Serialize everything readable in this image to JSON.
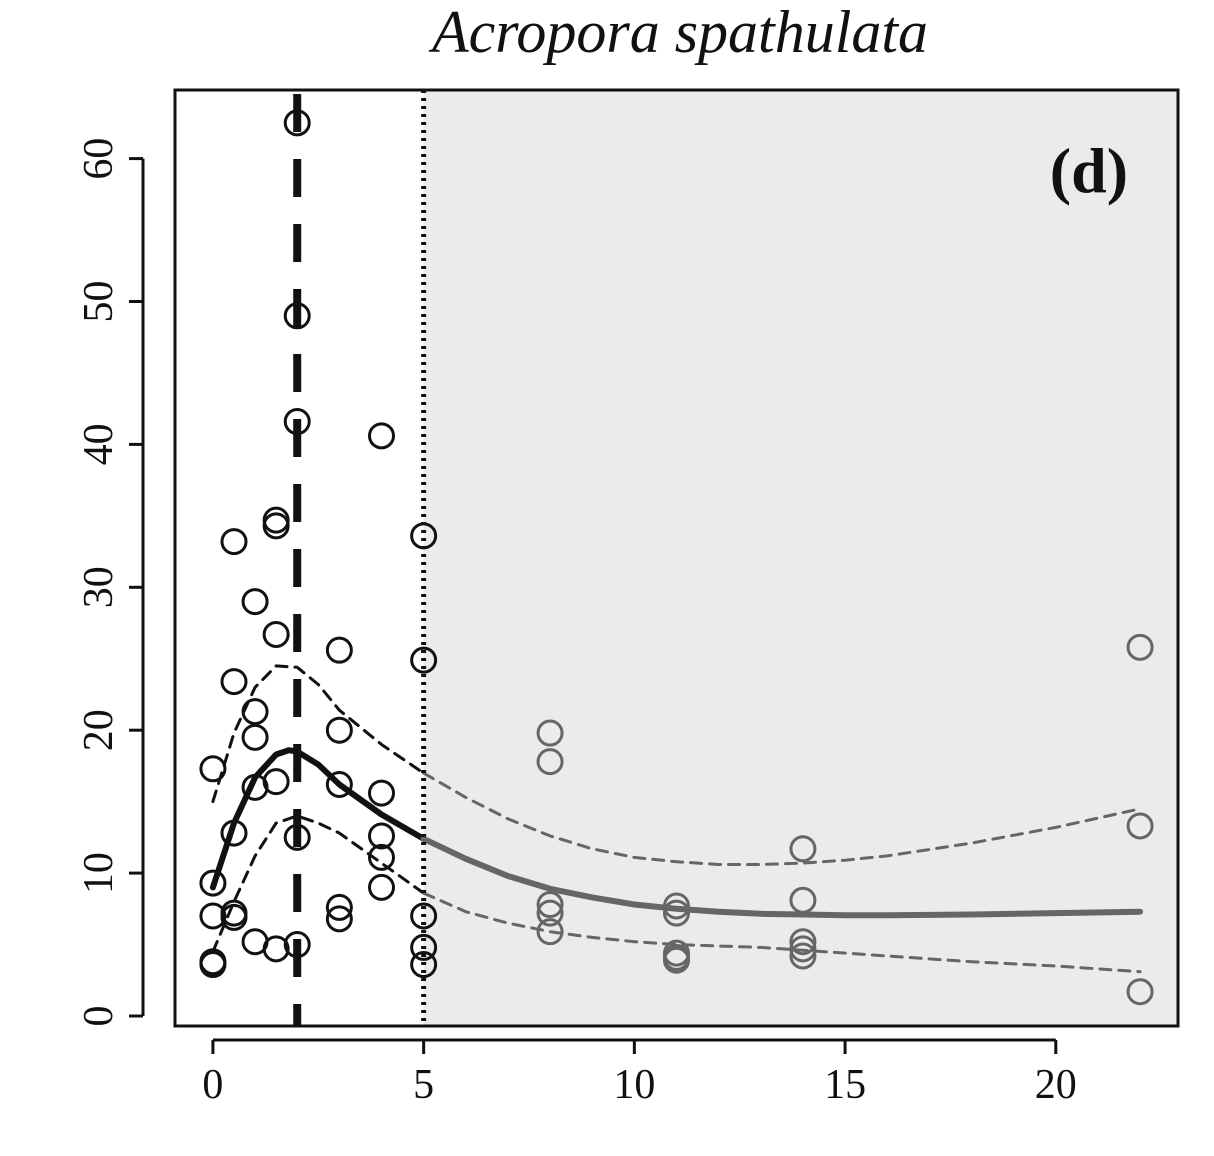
{
  "chart_data": {
    "type": "scatter",
    "title": "Acropora spathulata",
    "panel_label": "(d)",
    "xlabel": "",
    "ylabel": "",
    "xlim": [
      -0.9,
      22.9
    ],
    "ylim": [
      -0.7,
      64.8
    ],
    "x_ticks": [
      0,
      5,
      10,
      15,
      20
    ],
    "y_ticks": [
      0,
      10,
      20,
      30,
      40,
      50,
      60
    ],
    "shaded_region_x_from": 5,
    "vline_dashed_x": 2,
    "vline_dotted_x": 5,
    "colors": {
      "inside": "#111111",
      "outside": "#666666",
      "shade": "#ebebeb",
      "frame": "#111111"
    },
    "points": [
      {
        "x": 0,
        "y": 17.3
      },
      {
        "x": 0,
        "y": 9.3
      },
      {
        "x": 0,
        "y": 7.0
      },
      {
        "x": 0,
        "y": 3.8
      },
      {
        "x": 0,
        "y": 3.6
      },
      {
        "x": 0.5,
        "y": 33.2
      },
      {
        "x": 0.5,
        "y": 23.4
      },
      {
        "x": 0.5,
        "y": 12.8
      },
      {
        "x": 0.5,
        "y": 7.2
      },
      {
        "x": 0.5,
        "y": 6.9
      },
      {
        "x": 1,
        "y": 29.0
      },
      {
        "x": 1,
        "y": 21.3
      },
      {
        "x": 1,
        "y": 19.5
      },
      {
        "x": 1,
        "y": 16.0
      },
      {
        "x": 1,
        "y": 5.2
      },
      {
        "x": 1.5,
        "y": 34.7
      },
      {
        "x": 1.5,
        "y": 34.3
      },
      {
        "x": 1.5,
        "y": 26.7
      },
      {
        "x": 1.5,
        "y": 16.4
      },
      {
        "x": 1.5,
        "y": 4.7
      },
      {
        "x": 2,
        "y": 62.5
      },
      {
        "x": 2,
        "y": 49.0
      },
      {
        "x": 2,
        "y": 41.6
      },
      {
        "x": 2,
        "y": 12.5
      },
      {
        "x": 2,
        "y": 5.0
      },
      {
        "x": 3,
        "y": 25.6
      },
      {
        "x": 3,
        "y": 20.0
      },
      {
        "x": 3,
        "y": 16.2
      },
      {
        "x": 3,
        "y": 7.6
      },
      {
        "x": 3,
        "y": 6.8
      },
      {
        "x": 4,
        "y": 40.6
      },
      {
        "x": 4,
        "y": 15.6
      },
      {
        "x": 4,
        "y": 12.6
      },
      {
        "x": 4,
        "y": 11.1
      },
      {
        "x": 4,
        "y": 9.0
      },
      {
        "x": 5,
        "y": 33.6
      },
      {
        "x": 5,
        "y": 24.9
      },
      {
        "x": 5,
        "y": 7.0
      },
      {
        "x": 5,
        "y": 4.8
      },
      {
        "x": 5,
        "y": 3.6
      },
      {
        "x": 8,
        "y": 19.8
      },
      {
        "x": 8,
        "y": 17.8
      },
      {
        "x": 8,
        "y": 7.8
      },
      {
        "x": 8,
        "y": 7.2
      },
      {
        "x": 8,
        "y": 5.9
      },
      {
        "x": 11,
        "y": 7.7
      },
      {
        "x": 11,
        "y": 7.2
      },
      {
        "x": 11,
        "y": 4.4
      },
      {
        "x": 11,
        "y": 4.1
      },
      {
        "x": 11,
        "y": 3.9
      },
      {
        "x": 14,
        "y": 11.7
      },
      {
        "x": 14,
        "y": 8.1
      },
      {
        "x": 14,
        "y": 5.2
      },
      {
        "x": 14,
        "y": 4.7
      },
      {
        "x": 14,
        "y": 4.2
      },
      {
        "x": 22,
        "y": 25.8
      },
      {
        "x": 22,
        "y": 13.3
      },
      {
        "x": 22,
        "y": 1.7
      }
    ],
    "fit": {
      "x": [
        0,
        0.5,
        1,
        1.5,
        1.8,
        2,
        2.5,
        3,
        4,
        5,
        6,
        7,
        8,
        9,
        10,
        11,
        12,
        13,
        14,
        15,
        16,
        18,
        20,
        22
      ],
      "y": [
        9.0,
        13.5,
        16.7,
        18.3,
        18.6,
        18.5,
        17.6,
        16.2,
        14.1,
        12.4,
        11.0,
        9.8,
        8.9,
        8.3,
        7.8,
        7.5,
        7.3,
        7.15,
        7.1,
        7.05,
        7.05,
        7.1,
        7.2,
        7.3
      ]
    },
    "ci_upper": {
      "x": [
        0,
        0.5,
        1,
        1.5,
        2,
        2.5,
        3,
        4,
        5,
        6,
        7,
        8,
        9,
        10,
        11,
        12,
        13,
        14,
        15,
        16,
        18,
        20,
        22
      ],
      "y": [
        15.0,
        19.8,
        23.0,
        24.5,
        24.4,
        23.2,
        21.4,
        19.0,
        17.0,
        15.3,
        13.8,
        12.6,
        11.7,
        11.1,
        10.8,
        10.6,
        10.6,
        10.7,
        10.9,
        11.2,
        12.1,
        13.2,
        14.5
      ]
    },
    "ci_lower": {
      "x": [
        0,
        0.5,
        1,
        1.5,
        2,
        2.5,
        3,
        4,
        5,
        6,
        7,
        8,
        9,
        10,
        11,
        12,
        13,
        14,
        15,
        16,
        18,
        20,
        22
      ],
      "y": [
        4.5,
        8.0,
        11.2,
        13.5,
        14.0,
        13.5,
        12.8,
        10.7,
        8.6,
        7.3,
        6.5,
        5.9,
        5.5,
        5.2,
        5.0,
        4.9,
        4.8,
        4.6,
        4.4,
        4.2,
        3.8,
        3.5,
        3.1
      ]
    }
  }
}
